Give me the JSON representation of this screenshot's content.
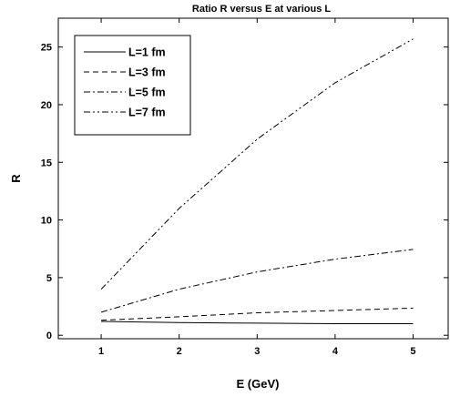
{
  "chart_data": {
    "type": "line",
    "title": "Ratio R versus E at various  L",
    "xlabel": "E (GeV)",
    "ylabel": "R",
    "xlim": [
      0.45,
      5.45
    ],
    "ylim": [
      -0.3,
      27.5
    ],
    "xticks": [
      1,
      2,
      3,
      4,
      5
    ],
    "yticks": [
      0,
      5,
      10,
      15,
      20,
      25
    ],
    "grid": false,
    "legend_position": "top-left",
    "x": [
      1,
      2,
      3,
      4,
      5
    ],
    "series": [
      {
        "name": "L=1 fm",
        "dash": "solid",
        "values": [
          1.2,
          1.1,
          1.05,
          1.0,
          1.0
        ]
      },
      {
        "name": "L=3 fm",
        "dash": "dash",
        "values": [
          1.3,
          1.6,
          1.95,
          2.15,
          2.35
        ]
      },
      {
        "name": "L=5 fm",
        "dash": "dash-dot",
        "values": [
          2.0,
          4.0,
          5.5,
          6.6,
          7.45
        ]
      },
      {
        "name": "L=7 fm",
        "dash": "dash-dot-dot",
        "values": [
          4.0,
          11.0,
          17.0,
          21.9,
          25.7
        ]
      }
    ]
  }
}
